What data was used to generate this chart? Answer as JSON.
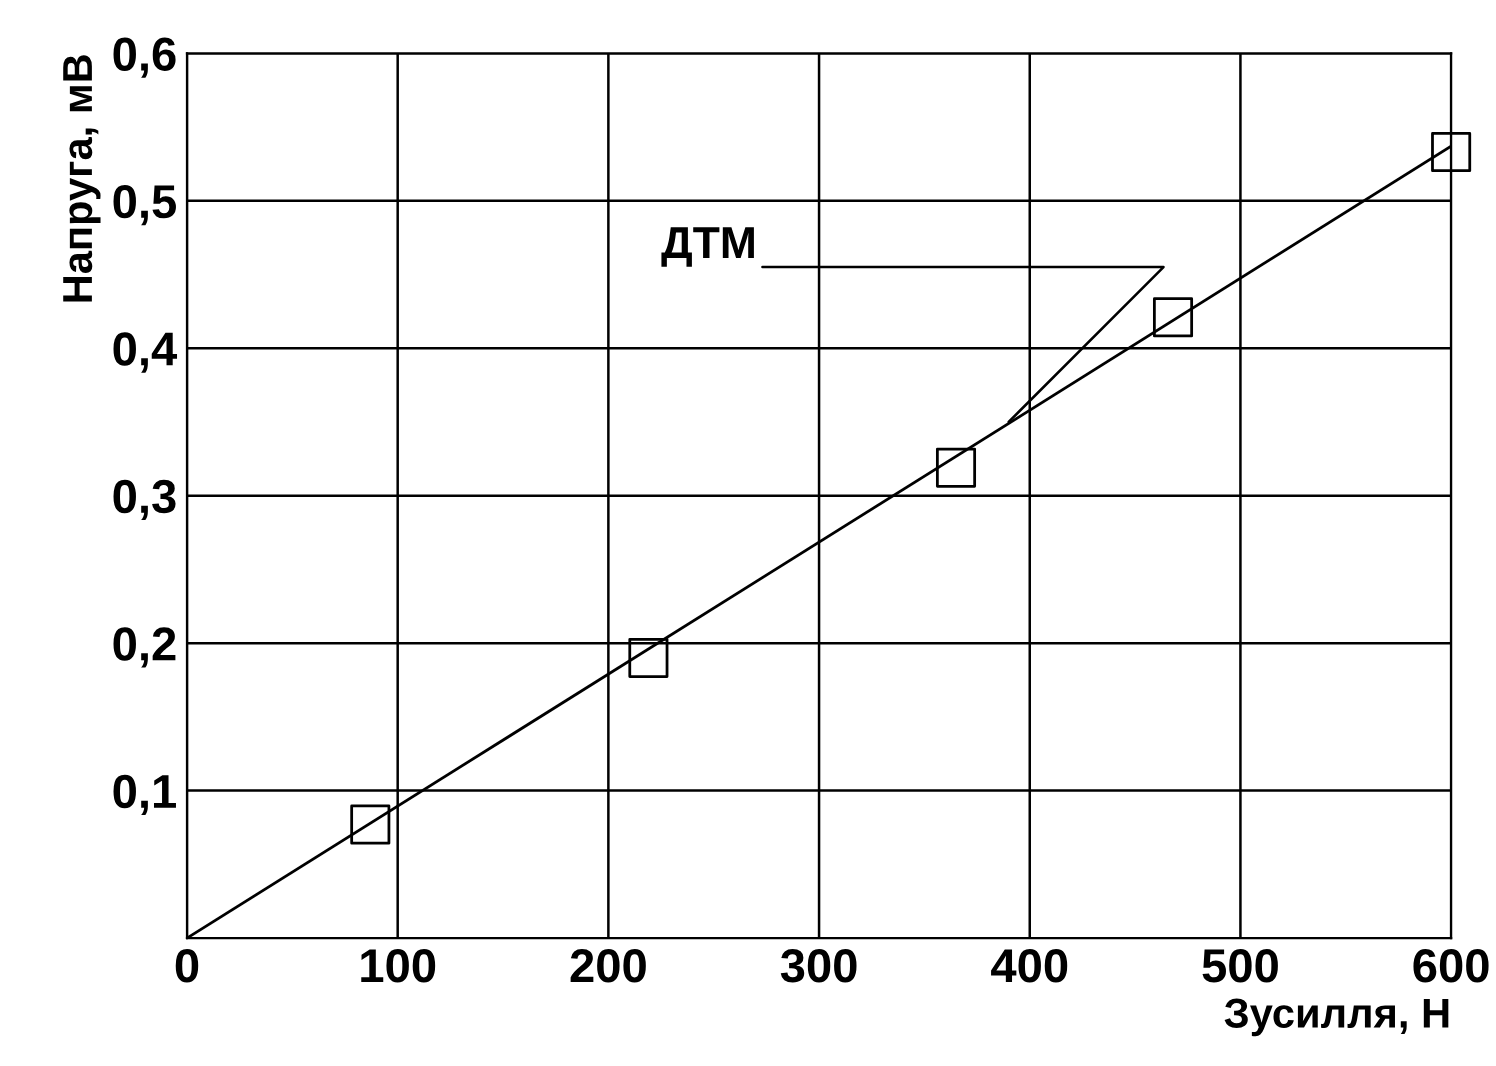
{
  "chart_data": {
    "type": "scatter",
    "xlabel": "Зусилля, Н",
    "ylabel": "Напруга, мВ",
    "xlim": [
      0,
      600
    ],
    "ylim": [
      0,
      0.6
    ],
    "xticks": [
      {
        "value": 0,
        "label": "0"
      },
      {
        "value": 100,
        "label": "100"
      },
      {
        "value": 200,
        "label": "200"
      },
      {
        "value": 300,
        "label": "300"
      },
      {
        "value": 400,
        "label": "400"
      },
      {
        "value": 500,
        "label": "500"
      },
      {
        "value": 600,
        "label": "600"
      }
    ],
    "yticks": [
      {
        "value": 0.1,
        "label": "0,1"
      },
      {
        "value": 0.2,
        "label": "0,2"
      },
      {
        "value": 0.3,
        "label": "0,3"
      },
      {
        "value": 0.4,
        "label": "0,4"
      },
      {
        "value": 0.5,
        "label": "0,5"
      },
      {
        "value": 0.6,
        "label": "0,6"
      }
    ],
    "grid": true,
    "series": [
      {
        "color": "#000000",
        "marker": "square",
        "x": [
          87,
          219,
          365,
          468,
          600
        ],
        "values": [
          0.077,
          0.19,
          0.319,
          0.421,
          0.533
        ]
      },
      {
        "type": "line",
        "color": "#000000",
        "marker": "none",
        "line_style": "solid",
        "x": [
          0,
          600
        ],
        "values": [
          0,
          0.537
        ]
      }
    ],
    "annotations": [
      {
        "text": "ДТМ",
        "x": 390,
        "y": 0.35
      }
    ]
  }
}
